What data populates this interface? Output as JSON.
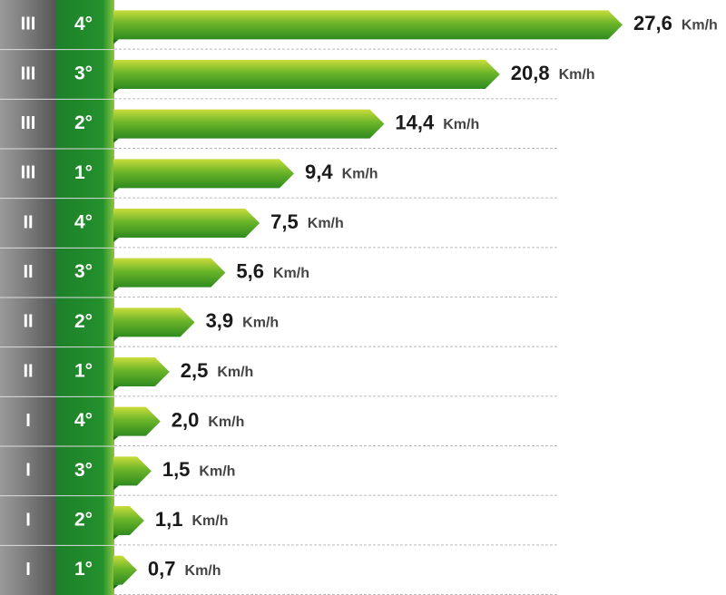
{
  "chart_data": {
    "type": "bar",
    "ranges": [
      "III",
      "III",
      "III",
      "III",
      "II",
      "II",
      "II",
      "II",
      "I",
      "I",
      "I",
      "I"
    ],
    "categories": [
      "4°",
      "3°",
      "2°",
      "1°",
      "4°",
      "3°",
      "2°",
      "1°",
      "4°",
      "3°",
      "2°",
      "1°"
    ],
    "values": [
      27.6,
      20.8,
      14.4,
      9.4,
      7.5,
      5.6,
      3.9,
      2.5,
      2.0,
      1.5,
      1.1,
      0.7
    ],
    "value_labels": [
      "27,6",
      "20,8",
      "14,4",
      "9,4",
      "7,5",
      "5,6",
      "3,9",
      "2,5",
      "2,0",
      "1,5",
      "1,1",
      "0,7"
    ],
    "unit": "Km/h",
    "color": "#4fa81f"
  }
}
